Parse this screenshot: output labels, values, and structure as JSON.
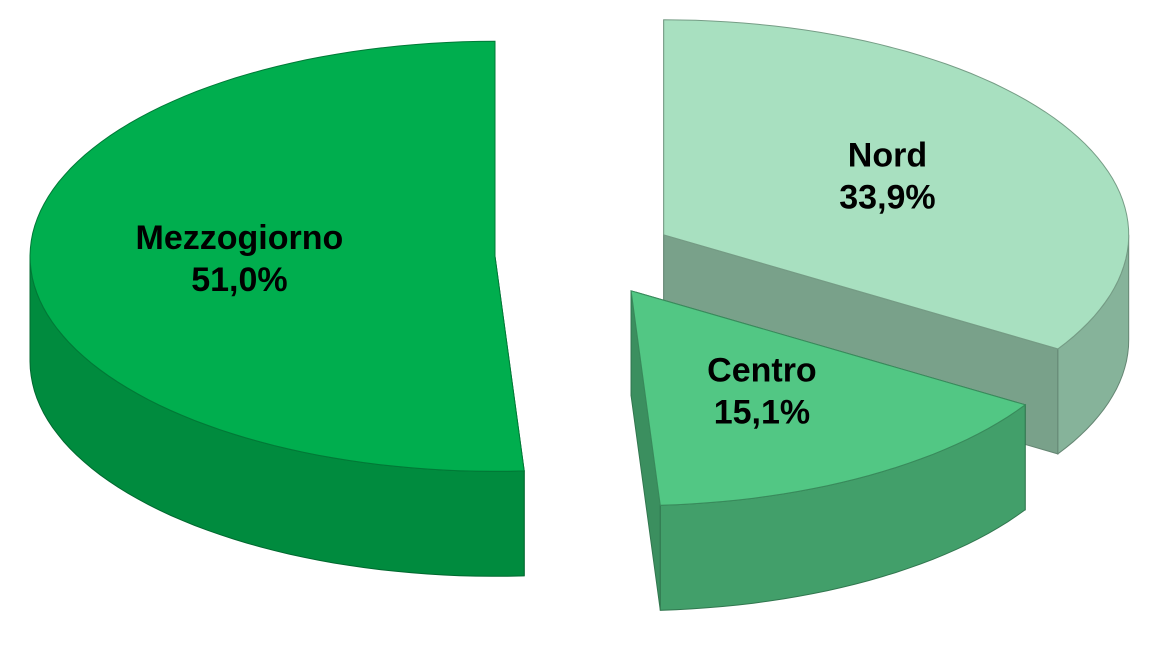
{
  "chart_data": {
    "type": "pie3d",
    "categories": [
      "Nord",
      "Centro",
      "Mezzogiorno"
    ],
    "values": [
      33.9,
      15.1,
      51.0
    ],
    "value_labels": [
      "33,9%",
      "15,1%",
      "51,0%"
    ],
    "colors": [
      "#a8e0c0",
      "#52c784",
      "#00ae4e"
    ],
    "exploded": true
  }
}
